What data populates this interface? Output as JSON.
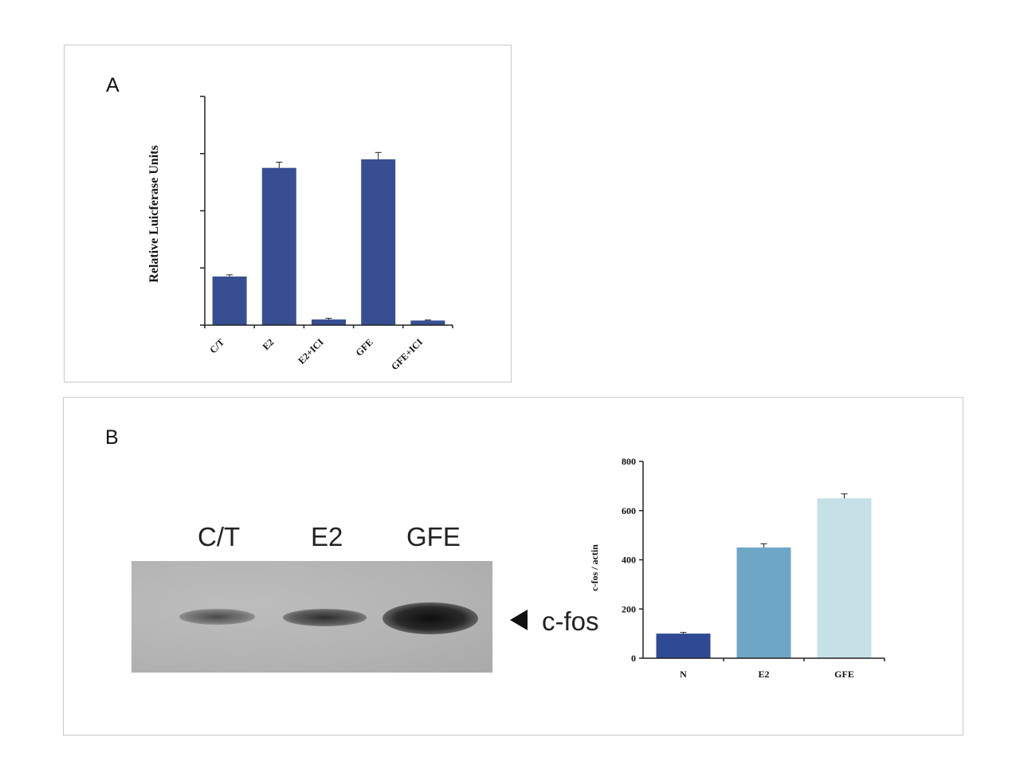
{
  "colors": {
    "bar_a": "#374f92",
    "bar_n": "#2e4a94",
    "bar_e2": "#6ea6c6",
    "bar_gfe": "#c5e0e7"
  },
  "panel_a": {
    "label": "A"
  },
  "panel_b": {
    "label": "B",
    "blot": {
      "lanes": [
        "C/T",
        "E2",
        "GFE"
      ],
      "band_label": "c-fos",
      "arrow_icon": "left-triangle-arrow"
    }
  },
  "chart_data": [
    {
      "type": "bar",
      "categories": [
        "C/T",
        "E2",
        "E2+ICI",
        "GFE",
        "GFE+ICI"
      ],
      "values": [
        0.85,
        2.75,
        0.1,
        2.9,
        0.08
      ],
      "errors": [
        0.03,
        0.1,
        0.02,
        0.12,
        0.01
      ],
      "ylabel": "Relative Luicferase Units",
      "xlabel": "",
      "title": "",
      "ylim": [
        0,
        4
      ],
      "yticks": [
        0,
        1,
        2,
        3,
        4
      ],
      "ytick_labels_shown": false,
      "grid": false
    },
    {
      "type": "bar",
      "categories": [
        "N",
        "E2",
        "GFE"
      ],
      "values": [
        100,
        450,
        650
      ],
      "errors": [
        5,
        15,
        18
      ],
      "ylabel": "c-fos / actin",
      "xlabel": "",
      "title": "",
      "ylim": [
        0,
        800
      ],
      "yticks": [
        0,
        200,
        400,
        600,
        800
      ],
      "grid": false
    }
  ]
}
